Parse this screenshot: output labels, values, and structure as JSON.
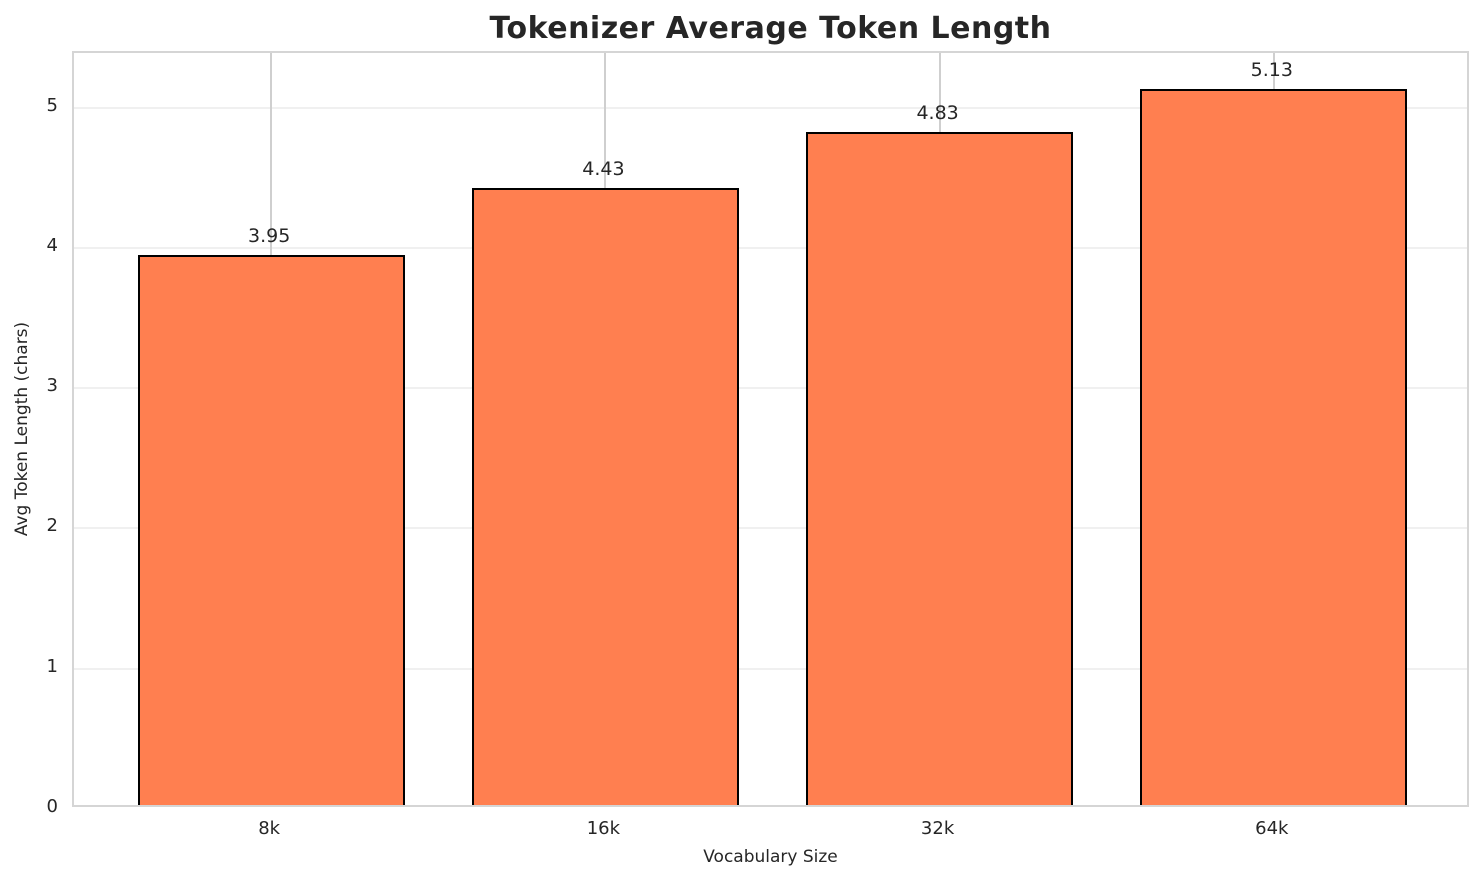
{
  "chart_data": {
    "type": "bar",
    "title": "Tokenizer Average Token Length",
    "xlabel": "Vocabulary Size",
    "ylabel": "Avg Token Length (chars)",
    "categories": [
      "8k",
      "16k",
      "32k",
      "64k"
    ],
    "values": [
      3.95,
      4.43,
      4.83,
      5.13
    ],
    "value_labels": [
      "3.95",
      "4.43",
      "4.83",
      "5.13"
    ],
    "yticks": [
      0,
      1,
      2,
      3,
      4,
      5
    ],
    "ylim": [
      0,
      5.39
    ],
    "xlim": [
      -0.59,
      3.59
    ],
    "bar_width": 0.8,
    "grid": true,
    "legend": "none",
    "colors": {
      "bar_fill": "#FF7F50",
      "bar_edge": "#000000",
      "h_grid": "#F0F0F0",
      "v_grid": "#CFCFCF",
      "spine": "#D5D5D5",
      "text": "#262626",
      "background": "#FFFFFF"
    }
  }
}
